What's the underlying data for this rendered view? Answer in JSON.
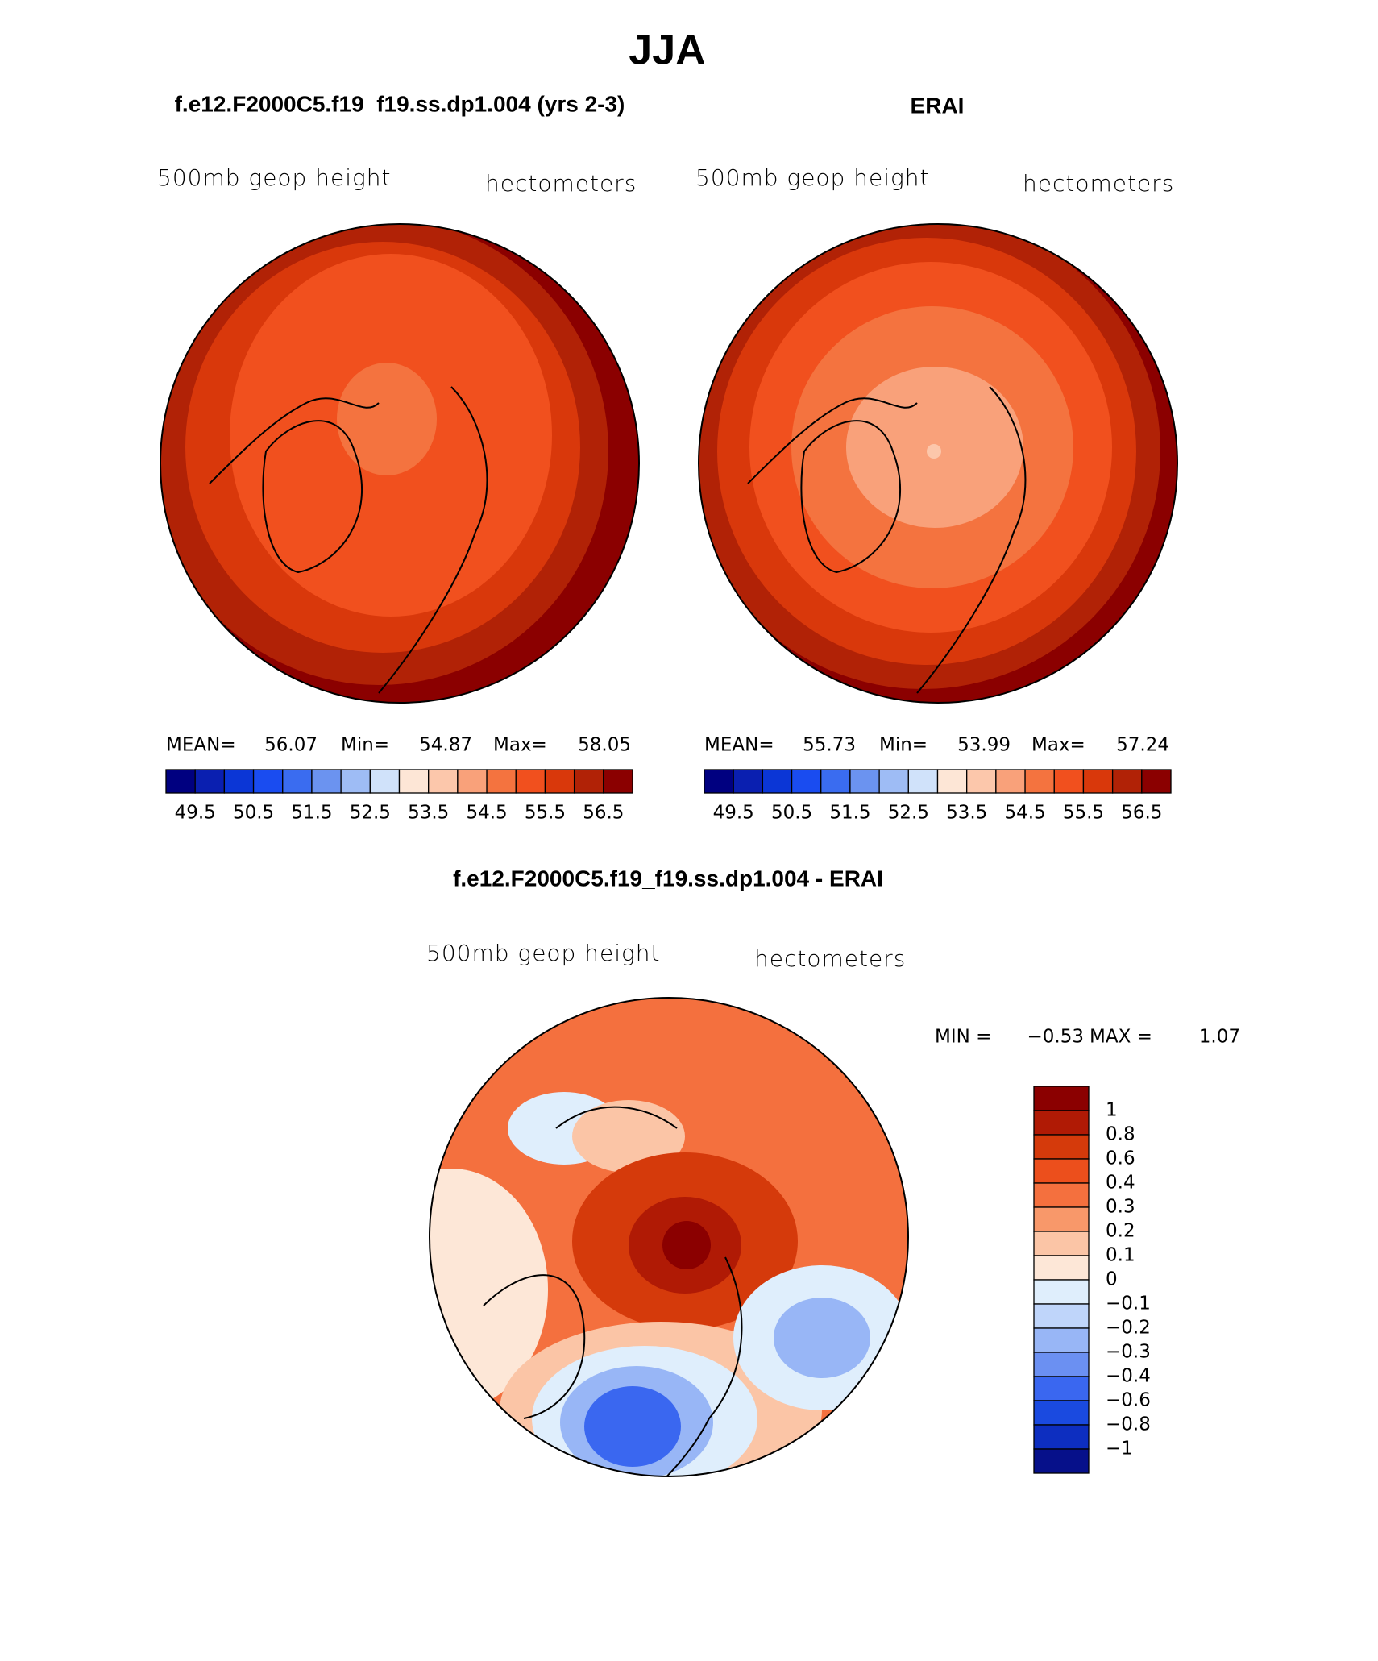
{
  "title": "JJA",
  "panels": [
    {
      "title": "f.e12.F2000C5.f19_f19.ss.dp1.004 (yrs 2-3)",
      "field": "500mb geop height",
      "units": "hectometers",
      "stats": [
        {
          "label": "MEAN=",
          "value": "56.07"
        },
        {
          "label": "Min=",
          "value": "54.87"
        },
        {
          "label": "Max=",
          "value": "58.05"
        }
      ],
      "colorbar": {
        "labels": [
          "49.5",
          "50.5",
          "51.5",
          "52.5",
          "53.5",
          "54.5",
          "55.5",
          "56.5"
        ],
        "colors": [
          "#000080",
          "#0a1fb0",
          "#0b36d6",
          "#1a4cf0",
          "#3a6cf0",
          "#6b93f0",
          "#9ebcf5",
          "#d0e2fa",
          "#fde6d6",
          "#fcc7ab",
          "#f9a17a",
          "#f4733f",
          "#f1501e",
          "#d9380b",
          "#b12206",
          "#8b0000"
        ]
      }
    },
    {
      "title": "ERAI",
      "field": "500mb geop height",
      "units": "hectometers",
      "stats": [
        {
          "label": "MEAN=",
          "value": "55.73"
        },
        {
          "label": "Min=",
          "value": "53.99"
        },
        {
          "label": "Max=",
          "value": "57.24"
        }
      ],
      "colorbar": {
        "labels": [
          "49.5",
          "50.5",
          "51.5",
          "52.5",
          "53.5",
          "54.5",
          "55.5",
          "56.5"
        ],
        "colors": [
          "#000080",
          "#0a1fb0",
          "#0b36d6",
          "#1a4cf0",
          "#3a6cf0",
          "#6b93f0",
          "#9ebcf5",
          "#d0e2fa",
          "#fde6d6",
          "#fcc7ab",
          "#f9a17a",
          "#f4733f",
          "#f1501e",
          "#d9380b",
          "#b12206",
          "#8b0000"
        ]
      }
    }
  ],
  "difference": {
    "title": "f.e12.F2000C5.f19_f19.ss.dp1.004 - ERAI",
    "field": "500mb geop height",
    "units": "hectometers",
    "min_label": "MIN =",
    "min": "−0.53",
    "max_label": "MAX =",
    "max": "1.07",
    "colorbar": {
      "labels": [
        "1",
        "0.8",
        "0.6",
        "0.4",
        "0.3",
        "0.2",
        "0.1",
        "0",
        "−0.1",
        "−0.2",
        "−0.3",
        "−0.4",
        "−0.6",
        "−0.8",
        "−1"
      ],
      "colors": [
        "#8b0000",
        "#b01a05",
        "#d53a0b",
        "#ec4f1c",
        "#f4703e",
        "#f8986a",
        "#fbc5a6",
        "#fde7d7",
        "#dfeefc",
        "#bfd5fa",
        "#98b6f6",
        "#6b90f2",
        "#3a67f0",
        "#1a4ae0",
        "#0d2ec0",
        "#06108a"
      ]
    }
  }
}
